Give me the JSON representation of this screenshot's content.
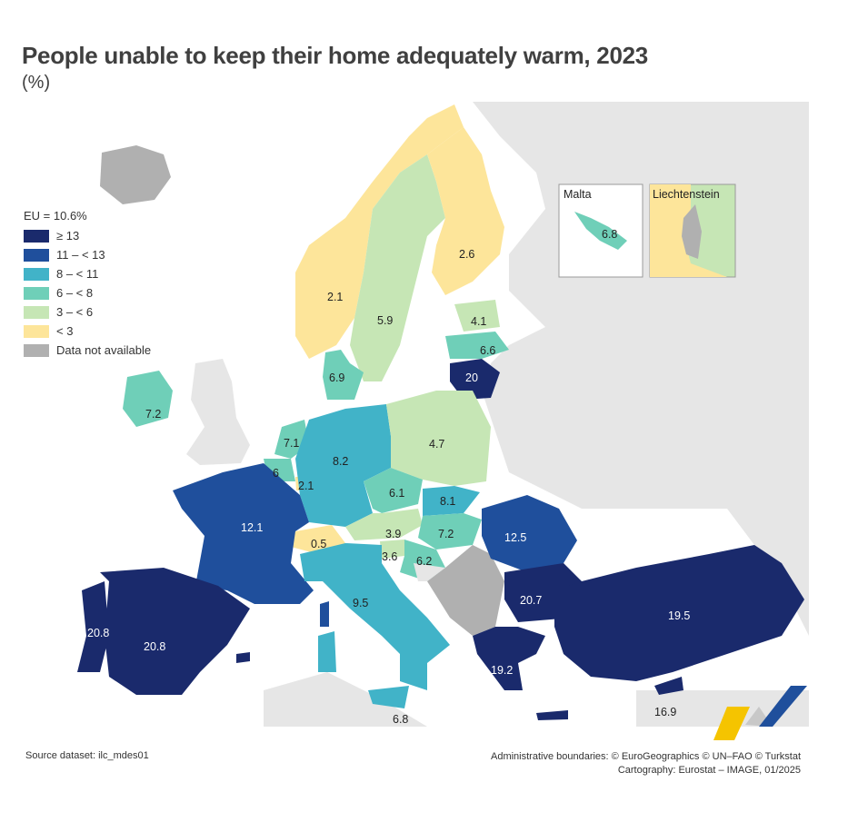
{
  "title": "People unable to keep their home adequately warm, 2023",
  "subtitle": "(%)",
  "legend": {
    "header": "EU = 10.6%",
    "classes": [
      {
        "label": "≥ 13",
        "color": "#1a2a6c"
      },
      {
        "label": "11 – < 13",
        "color": "#1f4f9c"
      },
      {
        "label": "8 – < 11",
        "color": "#41b3c8"
      },
      {
        "label": "6 – < 8",
        "color": "#6fcfb8"
      },
      {
        "label": "3 – < 6",
        "color": "#c6e6b5"
      },
      {
        "label": "< 3",
        "color": "#fde59a"
      },
      {
        "label": "Data not available",
        "color": "#b0b0b0"
      }
    ]
  },
  "insets": {
    "malta": {
      "title": "Malta",
      "value": "6.8"
    },
    "liechtenstein": {
      "title": "Liechtenstein"
    }
  },
  "values": {
    "norway": "2.1",
    "sweden": "5.9",
    "finland": "2.6",
    "estonia": "4.1",
    "latvia": "6.6",
    "lithuania": "20",
    "denmark": "6.9",
    "ireland": "7.2",
    "netherlands": "7.1",
    "belgium": "6",
    "luxembourg": "2.1",
    "germany": "8.2",
    "poland": "4.7",
    "czechia": "6.1",
    "slovakia": "8.1",
    "austria": "3.9",
    "hungary": "7.2",
    "slovenia": "3.6",
    "croatia": "6.2",
    "romania": "12.5",
    "bulgaria": "20.7",
    "switzerland": "0.5",
    "france": "12.1",
    "italy": "9.5",
    "italy_south": "6.8",
    "portugal": "20.8",
    "spain": "20.8",
    "greece": "19.2",
    "turkiye": "19.5",
    "cyprus": "16.9"
  },
  "footer": {
    "source": "Source dataset: ilc_mdes01",
    "boundaries": "Administrative boundaries: © EuroGeographics © UN–FAO © Turkstat",
    "cartography": "Cartography: Eurostat – IMAGE, 01/2025"
  }
}
